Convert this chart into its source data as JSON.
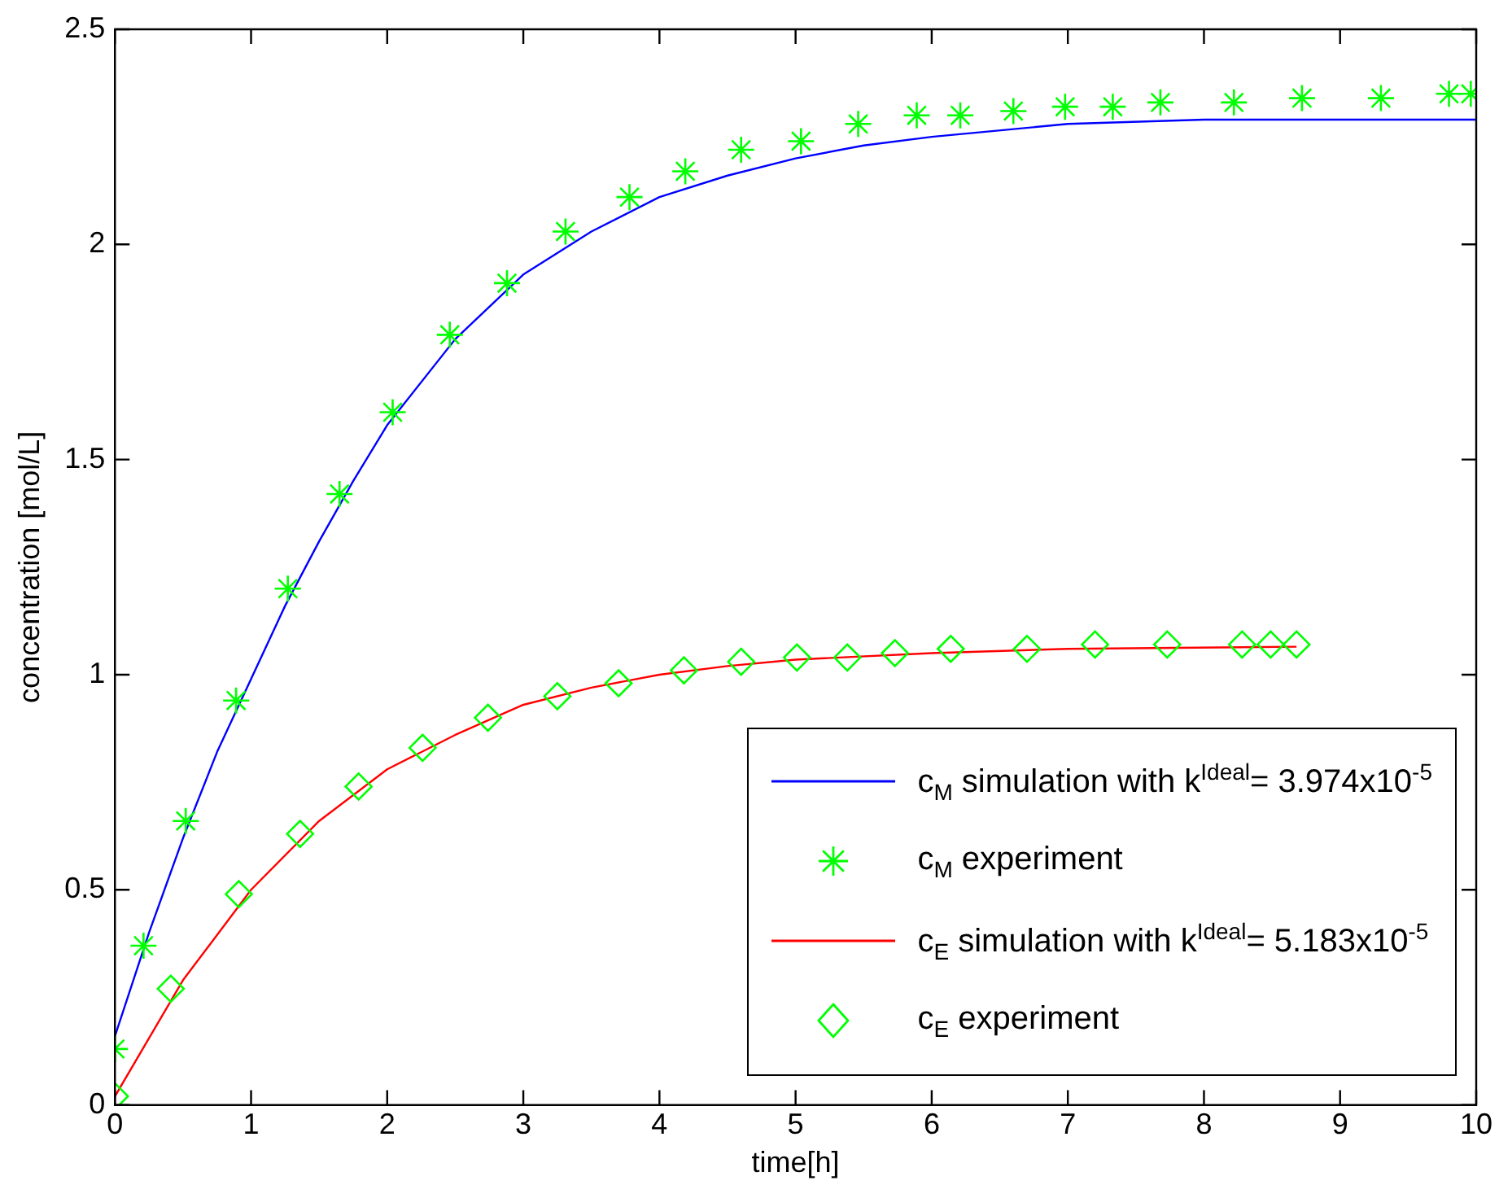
{
  "chart_data": {
    "type": "line",
    "xlabel": "time[h]",
    "ylabel": "concentration [mol/L]",
    "xlim": [
      0,
      10
    ],
    "xticks": [
      0,
      1,
      2,
      3,
      4,
      5,
      6,
      7,
      8,
      9,
      10
    ],
    "ylim": [
      0,
      2.5
    ],
    "yticks": [
      0,
      0.5,
      1,
      1.5,
      2,
      2.5
    ],
    "grid": false,
    "legend": "bottom right",
    "series": [
      {
        "name": "c$_{M}$ simulation with k$^{Ideal}$= 3.974x10$^{-5}$",
        "type": "line",
        "marker": "none",
        "color": "#0000ff",
        "x": [
          0,
          0.25,
          0.5,
          0.75,
          1,
          1.25,
          1.5,
          1.75,
          2,
          2.5,
          3,
          3.5,
          4,
          4.5,
          5,
          5.5,
          6,
          7,
          8,
          10
        ],
        "values": [
          0.16,
          0.4,
          0.62,
          0.82,
          0.99,
          1.16,
          1.31,
          1.45,
          1.58,
          1.78,
          1.93,
          2.03,
          2.11,
          2.16,
          2.2,
          2.23,
          2.25,
          2.28,
          2.29,
          2.29
        ]
      },
      {
        "name": "c$_{M}$ experiment",
        "type": "scatter",
        "marker": "cross",
        "color": "#00ff00",
        "x": [
          0,
          0.21,
          0.52,
          0.89,
          1.27,
          1.65,
          2.04,
          2.46,
          2.88,
          3.31,
          3.78,
          4.19,
          4.6,
          5.04,
          5.46,
          5.89,
          6.21,
          6.6,
          6.98,
          7.33,
          7.68,
          8.22,
          8.72,
          9.3,
          9.8,
          9.96
        ],
        "values": [
          0.13,
          0.37,
          0.66,
          0.94,
          1.2,
          1.42,
          1.61,
          1.79,
          1.91,
          2.03,
          2.11,
          2.17,
          2.22,
          2.24,
          2.28,
          2.3,
          2.3,
          2.31,
          2.32,
          2.32,
          2.33,
          2.33,
          2.34,
          2.34,
          2.35,
          2.35
        ]
      },
      {
        "name": "c$_{E}$ simulation with k$^{Ideal}$= 5.183x10$^{-5}$",
        "type": "line",
        "marker": "none",
        "color": "#ff0000",
        "x": [
          0,
          0.5,
          1,
          1.5,
          2,
          2.5,
          3,
          3.5,
          4,
          4.5,
          5,
          6,
          7,
          8.68
        ],
        "values": [
          0.02,
          0.29,
          0.5,
          0.66,
          0.78,
          0.86,
          0.93,
          0.97,
          1.0,
          1.02,
          1.035,
          1.05,
          1.06,
          1.065
        ]
      },
      {
        "name": "c$_{E}$ experiment",
        "type": "scatter",
        "marker": "diamond",
        "color": "#00ff00",
        "x": [
          0,
          0.41,
          0.91,
          1.36,
          1.79,
          2.26,
          2.74,
          3.25,
          3.7,
          4.18,
          4.6,
          5.01,
          5.38,
          5.73,
          6.14,
          6.7,
          7.2,
          7.73,
          8.28,
          8.49,
          8.68
        ],
        "values": [
          0.02,
          0.27,
          0.49,
          0.63,
          0.74,
          0.83,
          0.9,
          0.95,
          0.98,
          1.01,
          1.03,
          1.04,
          1.04,
          1.05,
          1.06,
          1.06,
          1.07,
          1.07,
          1.07,
          1.07,
          1.07
        ]
      }
    ]
  }
}
